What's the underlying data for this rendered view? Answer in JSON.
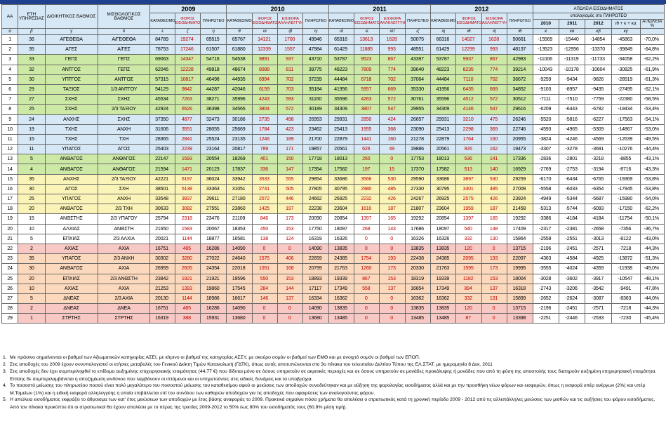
{
  "header": {
    "aa": "ΑΑ",
    "years_service": "ΕΤΗ ΥΠΗΡΕΣΙΑΣ",
    "admin_grade": "ΔΙΟΙΚΗΤΙΚΟΣ ΒΑΘΜΟΣ",
    "salary_grade": "ΜΙΣΘΟΛΟΓΙΚΟΣ ΒΑΘΜΟΣ",
    "years": [
      "2009",
      "2010",
      "2011",
      "2012"
    ],
    "loss_title": "ΑΠΩΛΕΙΑ ΕΙΣΟΔΗΜΑΤΟΣ",
    "loss_sub": "υπολογισμός στο ΠΛΗΡΩΤΕΟ",
    "sub_deposited": "ΚΑΤΑΘΕΣΙΜΟ",
    "sub_tax": "ΦΟΡΟΣ ΕΙΣΟΔΗΜΑΤΟΣ",
    "sub_solidarity": "ΕΙΣΦΟΡΑ ΑΛΛΗΛΕΓΓΥΗΣ",
    "sub_payable": "ΠΛΗΡΩΤΕΟ",
    "loss_years": [
      "2010",
      "2011",
      "2012"
    ],
    "loss_total": "ιθ + κ + κα",
    "loss_pct": "ΑΠΩΛΕΙΑ %",
    "letters": [
      "α",
      "β",
      "γ",
      "δ",
      "ε",
      "ζ",
      "η",
      "θ",
      "ια",
      "ιβ",
      "ιγ",
      "ιδ",
      "ιε",
      "ιστ",
      "ιζ",
      "ιη",
      "ιθ",
      "ιη",
      "ιθ",
      "κ",
      "κα",
      "κβ",
      "κγ"
    ]
  },
  "rows": [
    {
      "aa": "1",
      "ys": "36",
      "admin": "ΑΓΕΘΕΘΑ",
      "sal": "Α/ΓΕΘΕΘΑ",
      "d09": "84789",
      "t09": "19274",
      "p09": "65515",
      "d10": "65767",
      "t10": "14121",
      "s10": "1700",
      "p10": "49946",
      "d11": "65316",
      "t11": "13613",
      "s11": "1628",
      "p11": "50075",
      "d12": "66316",
      "t12": "14027",
      "s12": "1628",
      "p12": "50661",
      "l10": "-15569",
      "l11": "-15440",
      "l12": "-14854",
      "lt": "-45863",
      "pct": "-70,0%",
      "bg": "blue"
    },
    {
      "aa": "2",
      "ys": "35",
      "admin": "ΑΓΕΣ",
      "sal": "Α/ΓΕΣ",
      "d09": "78753",
      "t09": "17246",
      "p09": "61507",
      "d10": "61880",
      "t10": "12339",
      "s10": "1557",
      "p10": "47984",
      "d11": "61429",
      "t11": "11885",
      "s11": "993",
      "p11": "48551",
      "d12": "61429",
      "t12": "12299",
      "s12": "993",
      "p12": "48137",
      "l10": "-13523",
      "l11": "-12956",
      "l12": "-13370",
      "lt": "-39849",
      "pct": "-64,8%",
      "bg": "blue"
    },
    {
      "aa": "3",
      "ys": "33",
      "admin": "ΓΕΠΣ",
      "sal": "ΓΕΠΣ",
      "d09": "69063",
      "t09": "14347",
      "p09": "54716",
      "d10": "54538",
      "t10": "9891",
      "s10": "937",
      "p10": "43710",
      "d11": "53787",
      "t11": "9523",
      "s11": "867",
      "p11": "43397",
      "d12": "53787",
      "t12": "9937",
      "s12": "867",
      "p12": "42983",
      "l10": "-11006",
      "l11": "-11319",
      "l12": "-11733",
      "lt": "-34058",
      "pct": "-62,2%",
      "bg": "green"
    },
    {
      "aa": "4",
      "ys": "32",
      "admin": "ΑΝΤΓΟΣ",
      "sal": "ΓΕΠΣ",
      "d09": "62046",
      "t09": "12228",
      "p09": "49818",
      "d10": "48674",
      "t10": "8088",
      "s10": "811",
      "p10": "39775",
      "d11": "48223",
      "t11": "7809",
      "s11": "774",
      "p11": "39640",
      "d12": "48223",
      "t12": "8235",
      "s12": "774",
      "p12": "39214",
      "l10": "-10043",
      "l11": "-10178",
      "l12": "-10604",
      "lt": "-30825",
      "pct": "-61,9%",
      "bg": "green"
    },
    {
      "aa": "5",
      "ys": "30",
      "admin": "ΥΠΤΓΟΣ",
      "sal": "ΑΝΤΓΟΣ",
      "d09": "57315",
      "t09": "10817",
      "p09": "46498",
      "d10": "44935",
      "t10": "6994",
      "s10": "702",
      "p10": "37239",
      "d11": "44484",
      "t11": "6718",
      "s11": "702",
      "p11": "37064",
      "d12": "44484",
      "t12": "7110",
      "s12": "702",
      "p12": "36672",
      "l10": "-9259",
      "l11": "-9434",
      "l12": "-9826",
      "lt": "-28519",
      "pct": "-61,3%",
      "bg": "green"
    },
    {
      "aa": "6",
      "ys": "29",
      "admin": "ΤΑΞΙΟΣ",
      "sal": "1/3 ΑΝΤΓΟΥ",
      "d09": "54129",
      "t09": "9842",
      "p09": "44287",
      "d10": "42046",
      "t10": "6159",
      "s10": "703",
      "p10": "35184",
      "d11": "41956",
      "t11": "5957",
      "s11": "669",
      "p11": "35330",
      "d12": "41956",
      "t12": "6435",
      "s12": "669",
      "p12": "34852",
      "l10": "-9103",
      "l11": "-8957",
      "l12": "-9435",
      "lt": "-27495",
      "pct": "-62,1%",
      "bg": "green"
    },
    {
      "aa": "7",
      "ys": "27",
      "admin": "ΣΧΗΣ",
      "sal": "ΣΧΗΣ",
      "d09": "45534",
      "t09": "7263",
      "p09": "38271",
      "d10": "35996",
      "t10": "4243",
      "s10": "593",
      "p10": "31160",
      "d11": "35596",
      "t11": "4263",
      "s11": "572",
      "p11": "30761",
      "d12": "35596",
      "t12": "4512",
      "s12": "572",
      "p12": "30512",
      "l10": "-7111",
      "l11": "-7510",
      "l12": "-7759",
      "lt": "-22380",
      "pct": "-58,5%",
      "bg": "green"
    },
    {
      "aa": "8",
      "ys": "25",
      "admin": "ΣΧΗΣ",
      "sal": "2/3 ΤΑΞΙΟΥ",
      "d09": "42924",
      "t09": "6526",
      "p09": "36398",
      "d10": "34565",
      "t10": "3804",
      "s10": "572",
      "p10": "30189",
      "d11": "34309",
      "t11": "3807",
      "s11": "547",
      "p11": "29955",
      "d12": "34309",
      "t12": "4146",
      "s12": "547",
      "p12": "29616",
      "l10": "-6209",
      "l11": "-6443",
      "l12": "-6782",
      "lt": "-19434",
      "pct": "-53,4%",
      "bg": "green"
    },
    {
      "aa": "9",
      "ys": "24",
      "admin": "ΑΝΧΗΣ",
      "sal": "ΣΧΗΣ",
      "d09": "37350",
      "t09": "4877",
      "p09": "32473",
      "d10": "30186",
      "t10": "2735",
      "s10": "498",
      "p10": "26953",
      "d11": "29931",
      "t11": "2850",
      "s11": "424",
      "p11": "26657",
      "d12": "29931",
      "t12": "3210",
      "s12": "475",
      "p12": "26246",
      "l10": "-5520",
      "l11": "-5816",
      "l12": "-6227",
      "lt": "-17563",
      "pct": "-54,1%",
      "bg": "blue"
    },
    {
      "aa": "10",
      "ys": "19",
      "admin": "ΤΧΗΣ",
      "sal": "ΑΝΧΗ",
      "d09": "31606",
      "t09": "3551",
      "p09": "28055",
      "d10": "25669",
      "t10": "1784",
      "s10": "423",
      "p10": "23462",
      "d11": "25413",
      "t11": "1955",
      "s11": "368",
      "p11": "23090",
      "d12": "25413",
      "t12": "2298",
      "s12": "369",
      "p12": "22746",
      "l10": "-4593",
      "l11": "-4965",
      "l12": "-5309",
      "lt": "-14867",
      "pct": "-53,0%",
      "bg": "blue"
    },
    {
      "aa": "11",
      "ys": "15",
      "admin": "ΤΧΗΣ",
      "sal": "ΤΧΗ",
      "d09": "28365",
      "t09": "2841",
      "p09": "25524",
      "d10": "23135",
      "t10": "1246",
      "s10": "189",
      "p10": "21700",
      "d11": "22879",
      "t11": "1441",
      "s11": "160",
      "p11": "21278",
      "d12": "22879",
      "t12": "1764",
      "s12": "160",
      "p12": "20955",
      "l10": "-3824",
      "l11": "-4246",
      "l12": "-4569",
      "lt": "-12639",
      "pct": "-49,5%",
      "bg": "blue"
    },
    {
      "aa": "12",
      "ys": "11",
      "admin": "ΥΠΑΓΟΣ",
      "sal": "ΑΓΟΣ",
      "d09": "25403",
      "t09": "2239",
      "p09": "23164",
      "d10": "20817",
      "t10": "789",
      "s10": "171",
      "p10": "19857",
      "d11": "20561",
      "t11": "626",
      "s11": "49",
      "p11": "19886",
      "d12": "20561",
      "t12": "926",
      "s12": "162",
      "p12": "19473",
      "l10": "-3307",
      "l11": "-3278",
      "l12": "-3691",
      "lt": "-10276",
      "pct": "-44,4%",
      "bg": "blue"
    },
    {
      "aa": "13",
      "ys": "5",
      "admin": "ΑΝΘΑΓΟΣ",
      "sal": "ΑΝΘΑΓΟΣ",
      "d09": "22147",
      "t09": "1593",
      "p09": "20554",
      "d10": "18269",
      "t10": "401",
      "s10": "150",
      "p10": "17718",
      "d11": "18013",
      "t11": "260",
      "s11": "0",
      "p11": "17753",
      "d12": "18013",
      "t12": "536",
      "s12": "141",
      "p12": "17336",
      "l10": "-2836",
      "l11": "-2801",
      "l12": "-3218",
      "lt": "-8855",
      "pct": "-43,1%",
      "bg": "green"
    },
    {
      "aa": "14",
      "ys": "4",
      "admin": "ΑΝΘΑΓΟΣ",
      "sal": "ΑΝΘΑΓΟΣ",
      "d09": "21594",
      "t09": "1471",
      "p09": "20123",
      "d10": "17837",
      "t10": "336",
      "s10": "147",
      "p10": "17354",
      "d11": "17582",
      "t11": "197",
      "s11": "15",
      "p11": "17370",
      "d12": "17582",
      "t12": "513",
      "s12": "140",
      "p12": "16929",
      "l10": "-2769",
      "l11": "-2753",
      "l12": "-3194",
      "lt": "-8716",
      "pct": "-43,3%",
      "bg": "green"
    },
    {
      "aa": "15",
      "ys": "35",
      "admin": "ΑΝΧΗΣ",
      "sal": "2/3 ΤΑΞΙΟΥ",
      "d09": "42221",
      "t09": "6197",
      "p09": "36024",
      "d10": "33942",
      "t10": "3533",
      "s10": "555",
      "p10": "29854",
      "d11": "33686",
      "t11": "3566",
      "s11": "530",
      "p11": "29590",
      "d12": "33686",
      "t12": "3897",
      "s12": "530",
      "p12": "29259",
      "l10": "-6170",
      "l11": "-6434",
      "l12": "-6765",
      "lt": "-19369",
      "pct": "-53,8%",
      "bg": "yel"
    },
    {
      "aa": "16",
      "ys": "30",
      "admin": "ΑΓΟΣ",
      "sal": "ΣΧΗ",
      "d09": "38501",
      "t09": "5138",
      "p09": "33363",
      "d10": "31051",
      "t10": "2741",
      "s10": "505",
      "p10": "27805",
      "d11": "30795",
      "t11": "2980",
      "s11": "485",
      "p11": "27330",
      "d12": "30795",
      "t12": "3301",
      "s12": "485",
      "p12": "27009",
      "l10": "-5558",
      "l11": "-6033",
      "l12": "-6354",
      "lt": "-17945",
      "pct": "-53,8%",
      "bg": "yel"
    },
    {
      "aa": "17",
      "ys": "25",
      "admin": "ΥΠΑΓΟΣ",
      "sal": "ΑΝΧΗ",
      "d09": "33548",
      "t09": "3937",
      "p09": "29611",
      "d10": "27180",
      "t10": "2072",
      "s10": "446",
      "p10": "24662",
      "d11": "26925",
      "t11": "2232",
      "s11": "426",
      "p11": "24267",
      "d12": "26925",
      "t12": "2575",
      "s12": "426",
      "p12": "23924",
      "l10": "-4949",
      "l11": "-5344",
      "l12": "-5687",
      "lt": "-15980",
      "pct": "-54,0%",
      "bg": "yel"
    },
    {
      "aa": "18",
      "ys": "20",
      "admin": "ΑΝΘΑΓΟΣ",
      "sal": "2/3 ΤΧΗ",
      "d09": "30633",
      "t09": "3082",
      "p09": "27551",
      "d10": "23860",
      "t10": "1425",
      "s10": "197",
      "p10": "22238",
      "d11": "23604",
      "t11": "1610",
      "s11": "187",
      "p11": "21807",
      "d12": "23604",
      "t12": "1959",
      "s12": "187",
      "p12": "21458",
      "l10": "-5313",
      "l11": "-5744",
      "l12": "-6093",
      "lt": "-17150",
      "pct": "-62,2%",
      "bg": "yel"
    },
    {
      "aa": "19",
      "ys": "15",
      "admin": "ΑΝΘΣΤΗΣ",
      "sal": "2/3 ΥΠΑΓΟΥ",
      "d09": "25794",
      "t09": "2318",
      "p09": "23476",
      "d10": "21109",
      "t10": "846",
      "s10": "173",
      "p10": "20090",
      "d11": "20854",
      "t11": "1397",
      "s11": "165",
      "p11": "19292",
      "d12": "20854",
      "t12": "1397",
      "s12": "165",
      "p12": "19292",
      "l10": "-3386",
      "l11": "-4184",
      "l12": "-4184",
      "lt": "-11754",
      "pct": "-50,1%",
      "bg": "white"
    },
    {
      "aa": "20",
      "ys": "10",
      "admin": "ΑΛΧΙΑΣ",
      "sal": "ΑΝΘΣΤΗ",
      "d09": "21650",
      "t09": "1583",
      "p09": "20067",
      "d10": "18353",
      "t10": "450",
      "s10": "153",
      "p10": "17750",
      "d11": "18097",
      "t11": "268",
      "s11": "143",
      "p11": "17686",
      "d12": "18097",
      "t12": "540",
      "s12": "148",
      "p12": "17409",
      "l10": "-2317",
      "l11": "-2381",
      "l12": "-2658",
      "lt": "-7356",
      "pct": "-36,7%",
      "bg": "white"
    },
    {
      "aa": "21",
      "ys": "5",
      "admin": "ΕΠΧΙΑΣ",
      "sal": "2/3 ΑΛΧΙΑ",
      "d09": "20021",
      "t09": "1144",
      "p09": "18877",
      "d10": "16581",
      "t10": "138",
      "s10": "124",
      "p10": "16319",
      "d11": "16326",
      "t11": "0",
      "s11": "0",
      "p11": "16326",
      "d12": "16326",
      "t12": "332",
      "s12": "130",
      "p12": "15864",
      "l10": "-2558",
      "l11": "-2551",
      "l12": "-3013",
      "lt": "-8122",
      "pct": "-43,0%",
      "bg": "white"
    },
    {
      "aa": "22",
      "ys": "2",
      "admin": "ΑΧΙΑΣ",
      "sal": "ΑΧΙΑ",
      "d09": "16751",
      "t09": "465",
      "p09": "16286",
      "d10": "14090",
      "t10": "0",
      "s10": "0",
      "p10": "14090",
      "d11": "13835",
      "t11": "0",
      "s11": "0",
      "p11": "13835",
      "d12": "13835",
      "t12": "120",
      "s12": "0",
      "p12": "13715",
      "l10": "-2196",
      "l11": "-2451",
      "l12": "-2571",
      "lt": "-7218",
      "pct": "-44,3%",
      "bg": "pink"
    },
    {
      "aa": "23",
      "ys": "35",
      "admin": "ΥΠΑΓΟΣ",
      "sal": "2/3 ΑΝΧΗ",
      "d09": "30302",
      "t09": "3280",
      "p09": "27022",
      "d10": "24640",
      "t10": "1575",
      "s10": "406",
      "p10": "22659",
      "d11": "24385",
      "t11": "1754",
      "s11": "193",
      "p11": "22438",
      "d12": "24385",
      "t12": "2095",
      "s12": "193",
      "p12": "22097",
      "l10": "-4363",
      "l11": "-4584",
      "l12": "-4925",
      "lt": "-13872",
      "pct": "-51,3%",
      "bg": "org"
    },
    {
      "aa": "24",
      "ys": "30",
      "admin": "ΑΝΘΑΓΟΣ",
      "sal": "ΑΧΙΑ",
      "d09": "26959",
      "t09": "2605",
      "p09": "24354",
      "d10": "22018",
      "t10": "1051",
      "s10": "168",
      "p10": "20799",
      "d11": "21763",
      "t11": "1260",
      "s11": "173",
      "p11": "20330",
      "d12": "21763",
      "t12": "1595",
      "s12": "173",
      "p12": "19995",
      "l10": "-3555",
      "l11": "-4024",
      "l12": "-4359",
      "lt": "-11938",
      "pct": "-49,0%",
      "bg": "org"
    },
    {
      "aa": "25",
      "ys": "20",
      "admin": "ΕΠΧΙΑΣ",
      "sal": "2/3 ΑΝΘΣΤΗ",
      "d09": "23842",
      "t09": "1921",
      "p09": "21921",
      "d10": "19596",
      "t10": "550",
      "s10": "153",
      "p10": "18893",
      "d11": "19339",
      "t11": "867",
      "s11": "153",
      "p11": "18319",
      "d12": "19339",
      "t12": "1182",
      "s12": "153",
      "p12": "18004",
      "l10": "-3028",
      "l11": "-3602",
      "l12": "-3917",
      "lt": "-10547",
      "pct": "-48,1%",
      "bg": "org"
    },
    {
      "aa": "26",
      "ys": "10",
      "admin": "ΑΧΙΑΣ",
      "sal": "ΑΧΙΑ",
      "d09": "21253",
      "t09": "1393",
      "p09": "19860",
      "d10": "17545",
      "t10": "284",
      "s10": "144",
      "p10": "17117",
      "d11": "17349",
      "t11": "558",
      "s11": "137",
      "p11": "16654",
      "d12": "17349",
      "t12": "894",
      "s12": "137",
      "p12": "16318",
      "l10": "-2743",
      "l11": "-3206",
      "l12": "-3542",
      "lt": "-9491",
      "pct": "-47,8%",
      "bg": "org"
    },
    {
      "aa": "27",
      "ys": "5",
      "admin": "ΔΝΕΑΣ",
      "sal": "2/3 ΑΧΙΑ",
      "d09": "20130",
      "t09": "1144",
      "p09": "18986",
      "d10": "16617",
      "t10": "146",
      "s10": "137",
      "p10": "16334",
      "d11": "16362",
      "t11": "0",
      "s11": "0",
      "p11": "16362",
      "d12": "16362",
      "t12": "332",
      "s12": "131",
      "p12": "15899",
      "l10": "-2652",
      "l11": "-2624",
      "l12": "-3087",
      "lt": "-8363",
      "pct": "-44,0%",
      "bg": "org"
    },
    {
      "aa": "28",
      "ys": "2",
      "admin": "ΔΝΕΑΣ",
      "sal": "ΔΝΕΑ",
      "d09": "16751",
      "t09": "465",
      "p09": "16286",
      "d10": "14090",
      "t10": "0",
      "s10": "0",
      "p10": "14090",
      "d11": "13835",
      "t11": "0",
      "s11": "0",
      "p11": "13835",
      "d12": "13835",
      "t12": "120",
      "s12": "0",
      "p12": "13715",
      "l10": "-2196",
      "l11": "-2451",
      "l12": "-2571",
      "lt": "-7218",
      "pct": "-44,3%",
      "bg": "pink"
    },
    {
      "aa": "29",
      "ys": "1",
      "admin": "ΣΤΡΤΗΣ",
      "sal": "ΣΤΡΤΗΣ",
      "d09": "16319",
      "t09": "388",
      "p09": "15931",
      "d10": "13680",
      "t10": "0",
      "s10": "0",
      "p10": "13680",
      "d11": "13485",
      "t11": "0",
      "s11": "0",
      "p11": "13485",
      "d12": "13485",
      "t12": "87",
      "s12": "0",
      "p12": "13398",
      "l10": "-2251",
      "l11": "-2446",
      "l12": "-2533",
      "lt": "-7230",
      "pct": "-45,4%",
      "bg": "pink"
    }
  ],
  "notes": [
    {
      "n": "1.",
      "text": "Με πράσινο σημαίνονται οι βαθμοί των Αξιωματικών κατηγορίας ΑΣΕΙ, με κίτρινο οι βαθμοί της κατηγορίας ΑΣΣΥ, με σκούρο σομόν οι βαθμοί των ΕΜΘ και με ανοιχτό σομόν οι βαθμοί των ΕΠΟΠ."
    },
    {
      "n": "2.",
      "text": "Στις αποδοχές του 2009 έχουν συνυπολογιστεί οι ετήσιες μεταβολές του Γενικού Δείκτη Τιμών Καταναλωτή (ΓΔΤΚ), όπως αυτές αποτυπώνονται στο 3ο πίνακα του τελευταίου Δελτίου Τύπου της ΕΛ.ΣΤΑΤ. με ημερομηνία 8 Δεκ. 2011"
    },
    {
      "n": "3.",
      "text": "Στις αποδοχές δεν έχει συμπεριληφθεί το επίδομα αυξημένης επιχειρησιακής ετοιμότητας (44,77 €) που δίδεται μόνο σε όσους υπηρετούν σε ακριτικές περιοχές και σε όσους υπηρετούν σε μονάδες προκάλυψης ή μονάδες που από τη φύση της αποστολής τους διατηρούν αυξημένη επιχειρησιακή ετοιμότητα. Επίσης δε συμπεριλαμβάνεται η αποζημίωση κινδύνου που λαμβάνουν οι ιπτάμενοι και οι υπηρετούντες στις ειδικές δυνάμεις και τα υποβρύχια.",
      "wrap": true
    },
    {
      "n": "4.",
      "text": "Το ποσοστό μείωσης του πληρωτέου ποσού είναι πολύ μεγαλύτερο του ποσοστού μείωσης του καταθεσίμου αφού οι μειώσεις των αποδοχών συνοδεύτηκαν και με αύξηση της φορολογίας εισοδήματος αλλά και με την προσθήκη νέων φόρων και εισφορών, όπως η εισφορά υπέρ ανέργων (2%) και υπέρ Μ.Ταμείων (1%) και η ειδική εισφορά αλληλεγγύης η οποία επιβάλλεται επί του συνόλου των καθαρών αποδοχών για τις αποδοχές που αφαιρέσεις των αναλογούντος φόρου.",
      "wrap": true
    },
    {
      "n": "5.",
      "text": "Η απώλεια εισοδήματος εκφράζει το άθροισμα των κατ' έτος μειώσεων των αποδοχών με έτος βάσης αναφοράς το 2009. Πρακτικά σημαίνει πόσα χρήματα θα απολέσει ο στρατιωτικός κατά τη χρονική περίοδο 2009 - 2012 από τις αλλεπάλληλες μειώσεις των μισθών και τις αυξήσεις του φόρου εισοδήματος. Από τον πίνακα προκύπτει ότι οι στρατιωτικοί θα έχουν απολέσει με το πέρας της τριετίας 2009-2012 το 50% έως 80% του εισοδήματός τους (60,8% μέση τιμή).",
      "wrap": true
    }
  ],
  "colors": {
    "header": "#d6e7f5",
    "blue": "#d6e7f5",
    "green": "#cde9a6",
    "yellow": "#fbf4b8",
    "orange": "#fcd9bd",
    "pink": "#f8c9c4",
    "red_text": "#c00000"
  }
}
